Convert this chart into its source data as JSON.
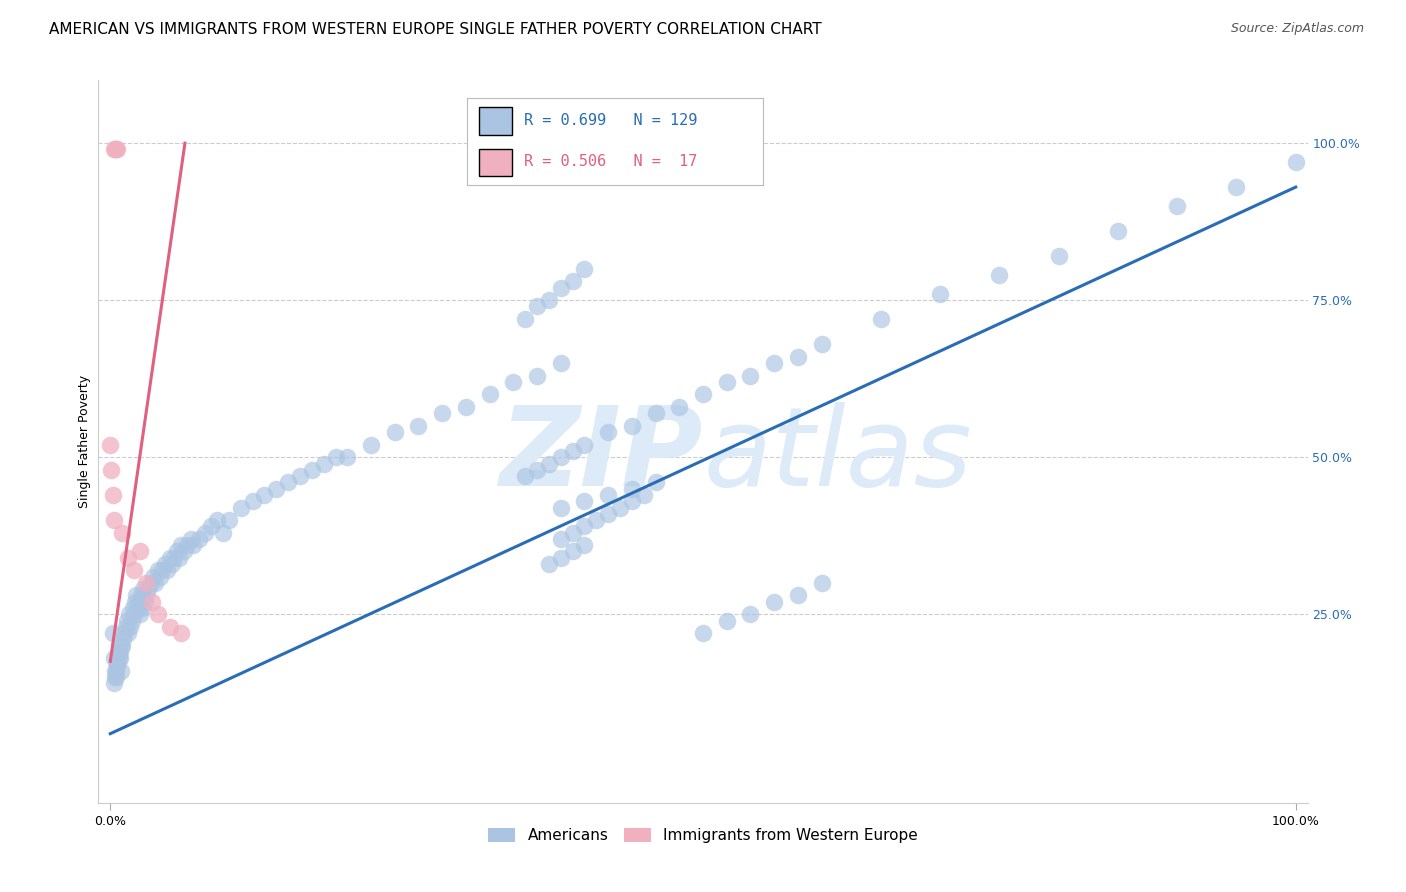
{
  "title": "AMERICAN VS IMMIGRANTS FROM WESTERN EUROPE SINGLE FATHER POVERTY CORRELATION CHART",
  "source": "Source: ZipAtlas.com",
  "ylabel": "Single Father Poverty",
  "legend_americans": "Americans",
  "legend_immigrants": "Immigrants from Western Europe",
  "r_americans": 0.699,
  "n_americans": 129,
  "r_immigrants": 0.506,
  "n_immigrants": 17,
  "americans_color": "#aac4e2",
  "americans_line_color": "#2a6db5",
  "immigrants_color": "#f0b0c0",
  "immigrants_line_color": "#e06080",
  "watermark_color": "#ddeaf8",
  "grid_color": "#cccccc",
  "background_color": "#ffffff",
  "title_fontsize": 11,
  "source_fontsize": 9,
  "ylabel_fontsize": 9,
  "tick_fontsize": 9,
  "legend_fontsize": 11,
  "scatter_size": 160,
  "scatter_alpha": 0.65,
  "am_line_start_x": 0.0,
  "am_line_start_y": 0.06,
  "am_line_end_x": 1.0,
  "am_line_end_y": 0.93,
  "im_line_start_x": 0.0,
  "im_line_start_y": 0.175,
  "im_line_end_x": 0.063,
  "im_line_end_y": 1.0,
  "xlim_min": -0.01,
  "xlim_max": 1.01,
  "ylim_min": -0.05,
  "ylim_max": 1.1,
  "yticks": [
    0.25,
    0.5,
    0.75,
    1.0
  ],
  "ytick_labels": [
    "25.0%",
    "50.0%",
    "75.0%",
    "100.0%"
  ],
  "xtick_left": 0.0,
  "xtick_right": 1.0,
  "xtick_left_label": "0.0%",
  "xtick_right_label": "100.0%",
  "americans_x": [
    0.002,
    0.003,
    0.004,
    0.005,
    0.006,
    0.007,
    0.008,
    0.009,
    0.01,
    0.011,
    0.012,
    0.013,
    0.014,
    0.015,
    0.016,
    0.017,
    0.018,
    0.019,
    0.02,
    0.021,
    0.022,
    0.023,
    0.024,
    0.025,
    0.026,
    0.027,
    0.028,
    0.029,
    0.03,
    0.032,
    0.034,
    0.036,
    0.038,
    0.04,
    0.042,
    0.044,
    0.046,
    0.048,
    0.05,
    0.052,
    0.054,
    0.056,
    0.058,
    0.06,
    0.062,
    0.065,
    0.068,
    0.07,
    0.075,
    0.08,
    0.085,
    0.09,
    0.095,
    0.1,
    0.11,
    0.12,
    0.13,
    0.14,
    0.15,
    0.16,
    0.17,
    0.18,
    0.19,
    0.2,
    0.22,
    0.24,
    0.26,
    0.28,
    0.3,
    0.32,
    0.34,
    0.36,
    0.38,
    0.35,
    0.36,
    0.37,
    0.38,
    0.39,
    0.4,
    0.42,
    0.44,
    0.46,
    0.48,
    0.5,
    0.52,
    0.54,
    0.56,
    0.58,
    0.6,
    0.38,
    0.4,
    0.42,
    0.44,
    0.46,
    0.65,
    0.7,
    0.75,
    0.8,
    0.85,
    0.9,
    0.95,
    1.0,
    0.37,
    0.38,
    0.39,
    0.4,
    0.38,
    0.39,
    0.4,
    0.41,
    0.42,
    0.43,
    0.44,
    0.45,
    0.003,
    0.004,
    0.005,
    0.006,
    0.007,
    0.008,
    0.009,
    0.35,
    0.36,
    0.37,
    0.38,
    0.39,
    0.4,
    0.5,
    0.52,
    0.54,
    0.56,
    0.58,
    0.6
  ],
  "americans_y": [
    0.22,
    0.18,
    0.16,
    0.15,
    0.17,
    0.19,
    0.18,
    0.16,
    0.2,
    0.21,
    0.22,
    0.23,
    0.24,
    0.22,
    0.25,
    0.23,
    0.24,
    0.26,
    0.25,
    0.27,
    0.28,
    0.26,
    0.27,
    0.25,
    0.28,
    0.26,
    0.29,
    0.27,
    0.28,
    0.29,
    0.3,
    0.31,
    0.3,
    0.32,
    0.31,
    0.32,
    0.33,
    0.32,
    0.34,
    0.33,
    0.34,
    0.35,
    0.34,
    0.36,
    0.35,
    0.36,
    0.37,
    0.36,
    0.37,
    0.38,
    0.39,
    0.4,
    0.38,
    0.4,
    0.42,
    0.43,
    0.44,
    0.45,
    0.46,
    0.47,
    0.48,
    0.49,
    0.5,
    0.5,
    0.52,
    0.54,
    0.55,
    0.57,
    0.58,
    0.6,
    0.62,
    0.63,
    0.65,
    0.47,
    0.48,
    0.49,
    0.5,
    0.51,
    0.52,
    0.54,
    0.55,
    0.57,
    0.58,
    0.6,
    0.62,
    0.63,
    0.65,
    0.66,
    0.68,
    0.42,
    0.43,
    0.44,
    0.45,
    0.46,
    0.72,
    0.76,
    0.79,
    0.82,
    0.86,
    0.9,
    0.93,
    0.97,
    0.33,
    0.34,
    0.35,
    0.36,
    0.37,
    0.38,
    0.39,
    0.4,
    0.41,
    0.42,
    0.43,
    0.44,
    0.14,
    0.15,
    0.16,
    0.17,
    0.18,
    0.19,
    0.2,
    0.72,
    0.74,
    0.75,
    0.77,
    0.78,
    0.8,
    0.22,
    0.24,
    0.25,
    0.27,
    0.28,
    0.3
  ],
  "immigrants_x": [
    0.003,
    0.004,
    0.005,
    0.006,
    0.0,
    0.001,
    0.002,
    0.003,
    0.01,
    0.015,
    0.02,
    0.025,
    0.03,
    0.035,
    0.04,
    0.05,
    0.06
  ],
  "immigrants_y": [
    0.99,
    0.99,
    0.99,
    0.99,
    0.52,
    0.48,
    0.44,
    0.4,
    0.38,
    0.34,
    0.32,
    0.35,
    0.3,
    0.27,
    0.25,
    0.23,
    0.22
  ]
}
